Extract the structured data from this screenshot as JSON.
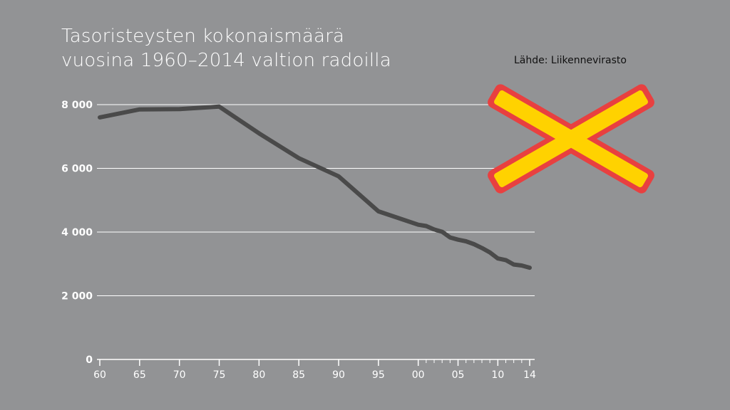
{
  "chart_data": {
    "type": "line",
    "title_lines": [
      "Tasoristeysten kokonaismäärä",
      "vuosina 1960–2014 valtion radoilla"
    ],
    "source": "Lähde: Liikennevirasto",
    "xlabel": "",
    "ylabel": "",
    "xlim": [
      1960,
      2014
    ],
    "ylim": [
      0,
      8000
    ],
    "y_ticks": [
      {
        "value": 0,
        "label": "0"
      },
      {
        "value": 2000,
        "label": "2 000"
      },
      {
        "value": 4000,
        "label": "4 000"
      },
      {
        "value": 6000,
        "label": "6 000"
      },
      {
        "value": 8000,
        "label": "8 000"
      }
    ],
    "x_ticks": [
      {
        "value": 1960,
        "label": "60"
      },
      {
        "value": 1965,
        "label": "65"
      },
      {
        "value": 1970,
        "label": "70"
      },
      {
        "value": 1975,
        "label": "75"
      },
      {
        "value": 1980,
        "label": "80"
      },
      {
        "value": 1985,
        "label": "85"
      },
      {
        "value": 1990,
        "label": "90"
      },
      {
        "value": 1995,
        "label": "95"
      },
      {
        "value": 2000,
        "label": "00"
      },
      {
        "value": 2005,
        "label": "05"
      },
      {
        "value": 2010,
        "label": "10"
      },
      {
        "value": 2014,
        "label": "14"
      }
    ],
    "minor_x_ticks": [
      2001,
      2002,
      2003,
      2004,
      2006,
      2007,
      2008,
      2009,
      2011,
      2012,
      2013
    ],
    "grid": true,
    "series": [
      {
        "color": "#4a4a4a",
        "points": [
          {
            "x": 1960,
            "y": 7600
          },
          {
            "x": 1965,
            "y": 7850
          },
          {
            "x": 1970,
            "y": 7860
          },
          {
            "x": 1975,
            "y": 7940
          },
          {
            "x": 1980,
            "y": 7100
          },
          {
            "x": 1985,
            "y": 6320
          },
          {
            "x": 1990,
            "y": 5750
          },
          {
            "x": 1995,
            "y": 4650
          },
          {
            "x": 2000,
            "y": 4230
          },
          {
            "x": 2001,
            "y": 4190
          },
          {
            "x": 2002,
            "y": 4080
          },
          {
            "x": 2003,
            "y": 4010
          },
          {
            "x": 2004,
            "y": 3830
          },
          {
            "x": 2005,
            "y": 3760
          },
          {
            "x": 2006,
            "y": 3710
          },
          {
            "x": 2007,
            "y": 3620
          },
          {
            "x": 2008,
            "y": 3500
          },
          {
            "x": 2009,
            "y": 3360
          },
          {
            "x": 2010,
            "y": 3170
          },
          {
            "x": 2011,
            "y": 3120
          },
          {
            "x": 2012,
            "y": 2980
          },
          {
            "x": 2013,
            "y": 2950
          },
          {
            "x": 2014,
            "y": 2880
          }
        ]
      }
    ]
  },
  "colors": {
    "background": "#929395",
    "grid": "#ffffff",
    "line": "#4a4a4a",
    "sign_fill": "#ffd200",
    "sign_border": "#e84040"
  },
  "icons": {
    "sign": "railway-crossing-sign-icon"
  }
}
